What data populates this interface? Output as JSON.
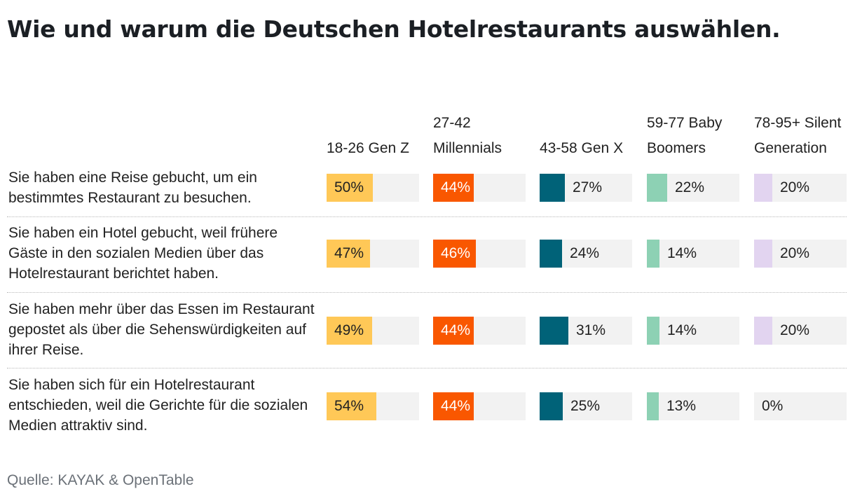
{
  "title": "Wie und warum die Deutschen Hotelrestaurants auswählen.",
  "source": "Quelle: KAYAK & OpenTable",
  "colors": {
    "gen_z": "#ffc857",
    "millennials": "#f95700",
    "gen_x": "#006278",
    "boomers": "#8dd1b4",
    "silent": "#e2d4f0",
    "track": "#f2f2f2"
  },
  "chart_data": {
    "type": "bar",
    "title": "Wie und warum die Deutschen Hotelrestaurants auswählen.",
    "xlim": [
      0,
      100
    ],
    "unit": "%",
    "categories": [
      "Sie haben eine Reise gebucht, um ein bestimmtes Restaurant zu besuchen.",
      "Sie haben ein Hotel gebucht, weil frühere Gäste in den sozialen Medien über das Hotelrestaurant berichtet haben.",
      "Sie haben mehr über das Essen im Restaurant gepostet als über die Sehenswürdigkeiten auf ihrer Reise.",
      "Sie haben sich für ein Hotelrestaurant entschieden, weil die Gerichte für die sozialen Medien attraktiv sind."
    ],
    "series": [
      {
        "name": "18-26 Gen Z",
        "color": "#ffc857",
        "label_color": "dark",
        "values": [
          50,
          47,
          49,
          54
        ]
      },
      {
        "name": "27-42 Millennials",
        "color": "#f95700",
        "label_color": "light",
        "values": [
          44,
          46,
          44,
          44
        ]
      },
      {
        "name": "43-58 Gen X",
        "color": "#006278",
        "label_color": "dark",
        "values": [
          27,
          24,
          31,
          25
        ]
      },
      {
        "name": "59-77 Baby Boomers",
        "color": "#8dd1b4",
        "label_color": "dark",
        "values": [
          22,
          14,
          14,
          13
        ]
      },
      {
        "name": "78-95+ Silent Generation",
        "color": "#e2d4f0",
        "label_color": "dark",
        "values": [
          20,
          20,
          20,
          0
        ]
      }
    ]
  }
}
